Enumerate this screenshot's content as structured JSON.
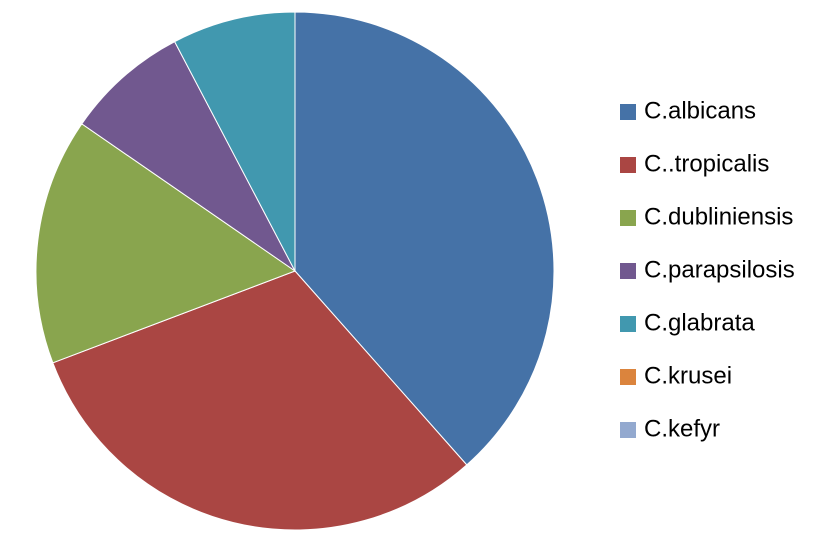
{
  "chart_data": {
    "type": "pie",
    "categories": [
      "C.albicans",
      "C..tropicalis",
      "C.dubliniensis",
      "C.parapsilosis",
      "C.glabrata",
      "C.krusei",
      "C.kefyr"
    ],
    "values": [
      10,
      8,
      4,
      2,
      2,
      0,
      0
    ],
    "colors": [
      "#4572a7",
      "#aa4643",
      "#89a54e",
      "#71588f",
      "#4198af",
      "#db843d",
      "#93a9cf"
    ],
    "legend": "right"
  }
}
